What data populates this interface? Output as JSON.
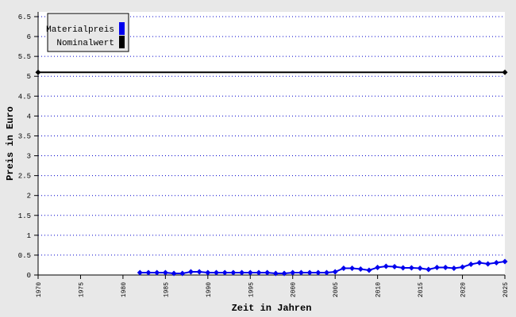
{
  "chart_data": {
    "type": "line",
    "x_label": "Zeit in Jahren",
    "y_label": "Preis in Euro",
    "xlim": [
      1970,
      2025
    ],
    "xticks": [
      1970,
      1975,
      1980,
      1985,
      1990,
      1995,
      2000,
      2005,
      2010,
      2015,
      2020,
      2025
    ],
    "ylim": [
      0,
      6.5
    ],
    "yticks": [
      0,
      0.5,
      1,
      1.5,
      2,
      2.5,
      3,
      3.5,
      4,
      4.5,
      5,
      5.5,
      6,
      6.5
    ],
    "grid": true,
    "legend": "top-left",
    "series": [
      {
        "name": "Materialpreis",
        "color": "#0000ee",
        "x": [
          1982,
          1983,
          1984,
          1985,
          1986,
          1987,
          1988,
          1989,
          1990,
          1991,
          1992,
          1993,
          1994,
          1995,
          1996,
          1997,
          1998,
          1999,
          2000,
          2001,
          2002,
          2003,
          2004,
          2005,
          2006,
          2007,
          2008,
          2009,
          2010,
          2011,
          2012,
          2013,
          2014,
          2015,
          2016,
          2017,
          2018,
          2019,
          2020,
          2021,
          2022,
          2023,
          2024,
          2025
        ],
        "values": [
          0.06,
          0.06,
          0.06,
          0.06,
          0.04,
          0.04,
          0.08,
          0.08,
          0.06,
          0.06,
          0.06,
          0.06,
          0.06,
          0.06,
          0.06,
          0.06,
          0.04,
          0.04,
          0.06,
          0.06,
          0.06,
          0.06,
          0.06,
          0.08,
          0.17,
          0.17,
          0.15,
          0.12,
          0.19,
          0.22,
          0.21,
          0.18,
          0.18,
          0.17,
          0.14,
          0.19,
          0.19,
          0.17,
          0.2,
          0.27,
          0.31,
          0.28,
          0.31,
          0.34
        ]
      },
      {
        "name": "Nominalwert",
        "color": "#000000",
        "x": [
          1970,
          2025
        ],
        "values": [
          5.1,
          5.1
        ]
      }
    ]
  }
}
